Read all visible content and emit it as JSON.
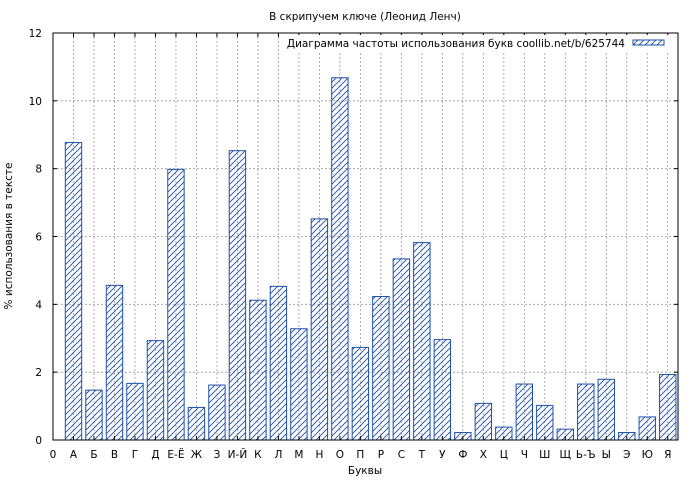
{
  "chart_data": {
    "type": "bar",
    "title": "В скрипучем ключе (Леонид Ленч)",
    "xlabel": "Буквы",
    "ylabel": "% использования в тексте",
    "legend": {
      "label": "Диаграмма частоты использования букв coollib.net/b/625744",
      "position": "top-right"
    },
    "ylim": [
      0,
      12
    ],
    "yticks": [
      0,
      2,
      4,
      6,
      8,
      10,
      12
    ],
    "x_origin_label": "0",
    "grid": true,
    "categories": [
      "А",
      "Б",
      "В",
      "Г",
      "Д",
      "Е-Ё",
      "Ж",
      "З",
      "И-Й",
      "К",
      "Л",
      "М",
      "Н",
      "О",
      "П",
      "Р",
      "С",
      "Т",
      "У",
      "Ф",
      "Х",
      "Ц",
      "Ч",
      "Ш",
      "Щ",
      "Ь-Ъ",
      "Ы",
      "Э",
      "Ю",
      "Я"
    ],
    "values": [
      8.77,
      1.47,
      4.56,
      1.67,
      2.93,
      7.98,
      0.96,
      1.62,
      8.53,
      4.12,
      4.53,
      3.28,
      6.52,
      10.68,
      2.73,
      4.23,
      5.34,
      5.82,
      2.96,
      0.22,
      1.08,
      0.38,
      1.65,
      1.02,
      0.32,
      1.65,
      1.79,
      0.22,
      0.68,
      1.93
    ],
    "colors": {
      "bar_stroke": "#1f4fa8",
      "grid": "#999999",
      "axis": "#000000"
    }
  }
}
